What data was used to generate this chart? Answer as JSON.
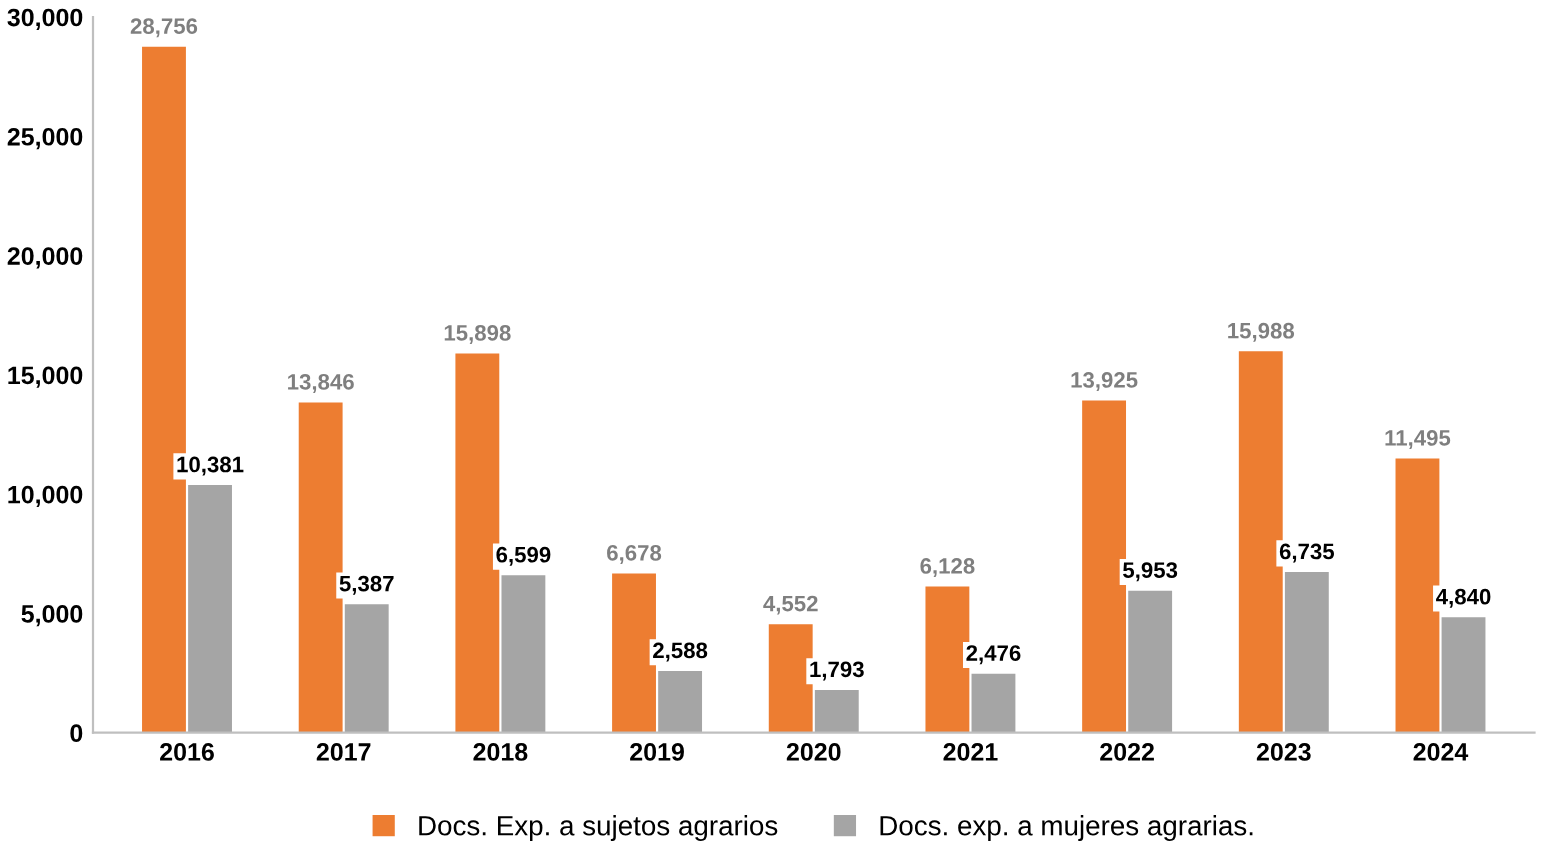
{
  "chart_data": {
    "type": "bar",
    "categories": [
      "2016",
      "2017",
      "2018",
      "2019",
      "2020",
      "2021",
      "2022",
      "2023",
      "2024"
    ],
    "series": [
      {
        "name": "Docs. Exp. a sujetos agrarios",
        "color": "#ed7d31",
        "values": [
          28756,
          13846,
          15898,
          6678,
          4552,
          6128,
          13925,
          15988,
          11495
        ],
        "value_labels": [
          "28,756",
          "13,846",
          "15,898",
          "6,678",
          "4,552",
          "6,128",
          "13,925",
          "15,988",
          "11,495"
        ]
      },
      {
        "name": "Docs. exp. a mujeres agrarias.",
        "color": "#a5a5a5",
        "values": [
          10381,
          5387,
          6599,
          2588,
          1793,
          2476,
          5953,
          6735,
          4840
        ],
        "value_labels": [
          "10,381",
          "5,387",
          "6,599",
          "2,588",
          "1,793",
          "2,476",
          "5,953",
          "6,735",
          "4,840"
        ]
      }
    ],
    "ylim": [
      0,
      30000
    ],
    "yticks": [
      {
        "value": 0,
        "label": "0"
      },
      {
        "value": 5000,
        "label": "5,000"
      },
      {
        "value": 10000,
        "label": "10,000"
      },
      {
        "value": 15000,
        "label": "15,000"
      },
      {
        "value": 20000,
        "label": "20,000"
      },
      {
        "value": 25000,
        "label": "25,000"
      },
      {
        "value": 30000,
        "label": "30,000"
      }
    ],
    "legend": "bottom",
    "grid": false
  }
}
